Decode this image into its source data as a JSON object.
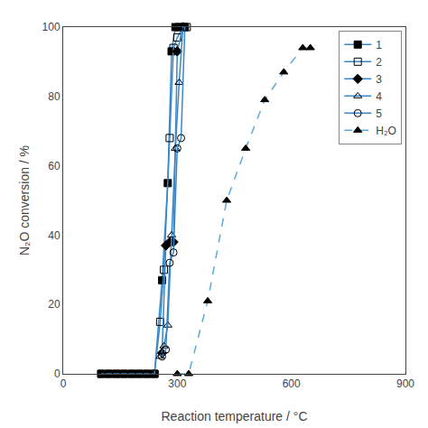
{
  "chart_data": {
    "type": "line",
    "xlabel": "Reaction temperature / °C",
    "ylabel": "N₂O conversion / %",
    "xlim": [
      0,
      900
    ],
    "ylim": [
      0,
      100
    ],
    "xticks": [
      0,
      300,
      600,
      900
    ],
    "yticks": [
      0,
      20,
      40,
      60,
      80,
      100
    ],
    "grid": false,
    "legend": "upper right",
    "series": [
      {
        "name": "1",
        "color": "#3a87c8",
        "marker": "square",
        "line_style": "solid",
        "x": [
          100,
          120,
          140,
          160,
          180,
          200,
          220,
          240,
          260,
          275,
          285,
          295,
          305,
          320
        ],
        "values": [
          0,
          0,
          0,
          0,
          0,
          0,
          0,
          0,
          27,
          55,
          93,
          100,
          100,
          100
        ]
      },
      {
        "name": "2",
        "color": "#3a87c8",
        "marker": "square-open",
        "line_style": "solid",
        "x": [
          100,
          120,
          140,
          160,
          180,
          200,
          220,
          240,
          255,
          265,
          280,
          290,
          300,
          315,
          325
        ],
        "values": [
          0,
          0,
          0,
          0,
          0,
          0,
          0,
          0,
          15,
          30,
          68,
          94,
          97,
          100,
          100
        ]
      },
      {
        "name": "3",
        "color": "#3a87c8",
        "marker": "diamond",
        "line_style": "solid",
        "x": [
          260,
          270,
          280,
          290,
          300,
          315
        ],
        "values": [
          6,
          37,
          38,
          38,
          93,
          100
        ]
      },
      {
        "name": "4",
        "color": "#3a87c8",
        "marker": "triangle-up-open",
        "line_style": "solid",
        "x": [
          255,
          265,
          275,
          285,
          295,
          305,
          315
        ],
        "values": [
          5,
          8,
          14,
          40,
          65,
          84,
          100
        ]
      },
      {
        "name": "5",
        "color": "#3a87c8",
        "marker": "circle-open",
        "line_style": "solid",
        "x": [
          260,
          270,
          280,
          290,
          300,
          310,
          320
        ],
        "values": [
          5,
          7,
          32,
          35,
          65,
          68,
          100
        ]
      },
      {
        "name": "H₂O",
        "color": "#5aaae0",
        "marker": "triangle-up",
        "line_style": "dashed",
        "x": [
          300,
          330,
          380,
          430,
          480,
          530,
          580,
          630,
          650
        ],
        "values": [
          0,
          0,
          21,
          50,
          65,
          79,
          87,
          94,
          94
        ]
      }
    ]
  }
}
